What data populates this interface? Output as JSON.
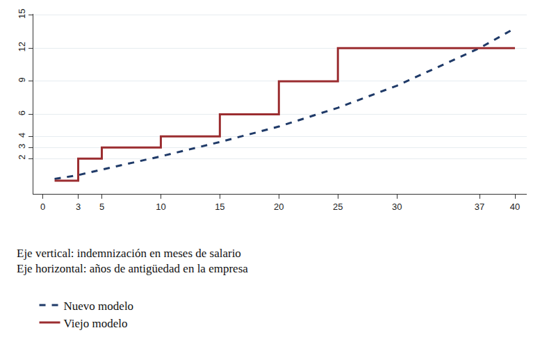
{
  "chart_data": {
    "type": "line",
    "annotations": [
      "Eje vertical: indemnización en meses de salario",
      "Eje horizontal: años de antigüedad en la empresa"
    ],
    "series": [
      {
        "name": "Nuevo modelo",
        "color": "#1f3a68",
        "line_style": "dash",
        "x": [
          1,
          3,
          5,
          10,
          15,
          20,
          25,
          30,
          37,
          40
        ],
        "values": [
          0.15,
          0.5,
          1.0,
          2.2,
          3.5,
          4.9,
          6.6,
          8.6,
          12,
          13.8
        ]
      },
      {
        "name": "Viejo modelo",
        "color": "#9b2d30",
        "line_style": "step",
        "x": [
          1,
          3,
          5,
          10,
          15,
          20,
          25,
          40
        ],
        "values": [
          0,
          2,
          3,
          4,
          6,
          9,
          12,
          12
        ]
      }
    ],
    "xlim": [
      -0.8,
      41
    ],
    "xticks": [
      0,
      3,
      5,
      10,
      15,
      20,
      25,
      30,
      37,
      40
    ],
    "ylim": [
      -1.2,
      15.1
    ],
    "yticks": [
      2,
      3,
      4,
      6,
      9,
      12,
      15
    ],
    "grid": "y",
    "legend": "bottom"
  }
}
